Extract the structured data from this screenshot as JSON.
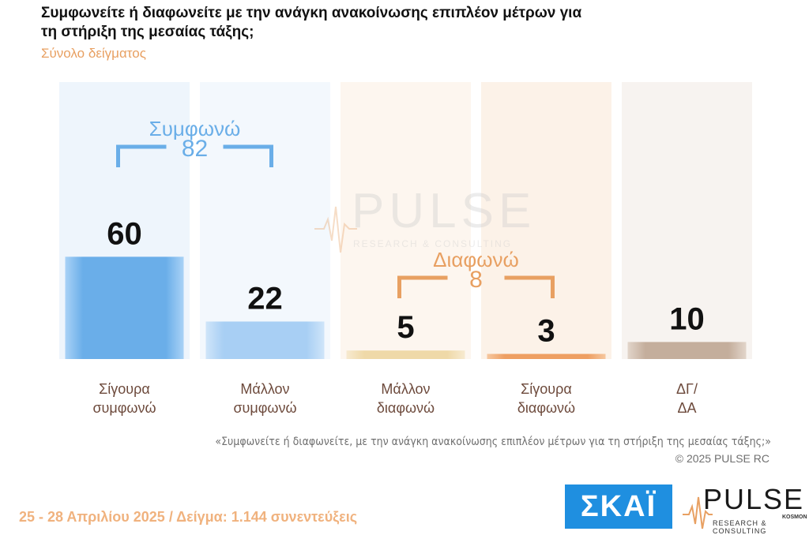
{
  "title": "Συμφωνείτε ή διαφωνείτε με την ανάγκη ανακοίνωσης επιπλέον μέτρων για τη στήριξη της μεσαίας τάξης;",
  "subtitle": "Σύνολο δείγματος",
  "chart_data": {
    "type": "bar",
    "categories": [
      "Σίγουρα\nσυμφωνώ",
      "Μάλλον\nσυμφωνώ",
      "Μάλλον\nδιαφωνώ",
      "Σίγουρα\nδιαφωνώ",
      "ΔΓ/\nΔΑ"
    ],
    "values": [
      60,
      22,
      5,
      3,
      10
    ],
    "value_labels": [
      "60",
      "22",
      "5",
      "3",
      "10"
    ],
    "ylim": [
      0,
      100
    ],
    "groups": [
      {
        "label": "Συμφωνώ",
        "total": "82",
        "categories": [
          0,
          1
        ],
        "color": "#6aaee8"
      },
      {
        "label": "Διαφωνώ",
        "total": "8",
        "categories": [
          2,
          3
        ],
        "color": "#E8A062"
      }
    ],
    "bar_colors": [
      "#7ab8ec",
      "#aed2f4",
      "#f1ddb0",
      "#f0a66c",
      "#c8b4a4"
    ],
    "column_bg_colors": [
      "#eef5fc",
      "#f3f8fd",
      "#fdf6ef",
      "#fcf2e8",
      "#f7f3f0"
    ],
    "watermark": {
      "main": "PULSE",
      "sub": "RESEARCH & CONSULTING"
    }
  },
  "source_quote": "«Συμφωνείτε ή διαφωνείτε, με την ανάγκη ανακοίνωσης επιπλέον μέτρων για τη στήριξη της μεσαίας τάξης;»",
  "copyright": "©  2025  PULSE RC",
  "footer": "25 - 28 Απριλίου 2025  /  Δείγμα:  1.144 συνεντεύξεις",
  "logos": {
    "skai": "ΣΚΑΪ",
    "pulse": "PULSE",
    "pulse_sub": "RESEARCH & CONSULTING",
    "kosmos": "KOSMON"
  }
}
